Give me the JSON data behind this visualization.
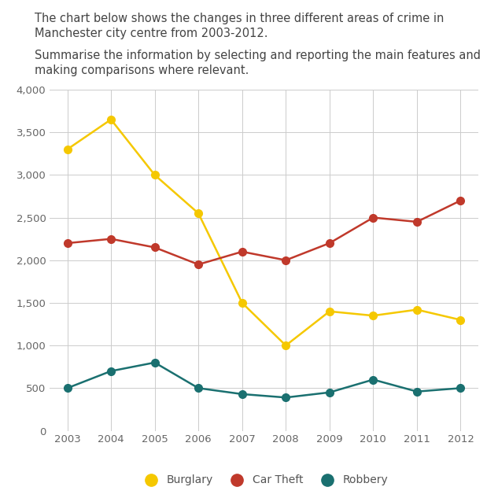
{
  "title_line1": "The chart below shows the changes in three different areas of crime in",
  "title_line2": "Manchester city centre from 2003-2012.",
  "title_line3": "Summarise the information by selecting and reporting the main features and",
  "title_line4": "making comparisons where relevant.",
  "years": [
    2003,
    2004,
    2005,
    2006,
    2007,
    2008,
    2009,
    2010,
    2011,
    2012
  ],
  "burglary": [
    3300,
    3650,
    3000,
    2550,
    1500,
    1000,
    1400,
    1350,
    1420,
    1300
  ],
  "car_theft": [
    2200,
    2250,
    2150,
    1950,
    2100,
    2000,
    2200,
    2500,
    2450,
    2700
  ],
  "robbery": [
    500,
    700,
    800,
    500,
    430,
    390,
    450,
    600,
    460,
    500
  ],
  "burglary_color": "#f5c800",
  "car_theft_color": "#c0392b",
  "robbery_color": "#1a7070",
  "background_color": "#ffffff",
  "ylim": [
    0,
    4000
  ],
  "yticks": [
    0,
    500,
    1000,
    1500,
    2000,
    2500,
    3000,
    3500,
    4000
  ],
  "grid_color": "#cccccc",
  "title_fontsize": 10.5,
  "axis_fontsize": 9.5,
  "legend_fontsize": 10,
  "marker_size": 7,
  "line_width": 1.8
}
